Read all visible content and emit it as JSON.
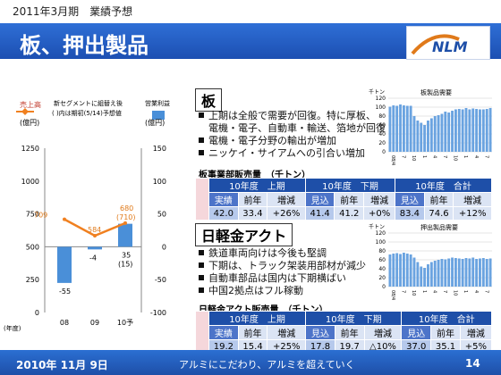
{
  "header": {
    "period": "2011年3月期　業績予想",
    "title": "板、押出製品"
  },
  "logo": {
    "text": "NLM"
  },
  "chart_main": {
    "left_title": "売上高",
    "left_unit": "(億円)",
    "legend_line": "新セグメントに組替え後",
    "legend_line2": "(   )内は期初(5/14)予想値",
    "right_title": "営業利益",
    "right_unit": "(億円)",
    "year_label": "(年度)",
    "left_ticks": [
      "1250",
      "1000",
      "750",
      "500",
      "250",
      "0"
    ],
    "right_ticks": [
      "150",
      "100",
      "50",
      "0",
      "-50",
      "-100"
    ],
    "categories": [
      "08",
      "09",
      "10予"
    ],
    "label_709": "709",
    "label_584": "584",
    "label_680": "680",
    "label_710": "(710)",
    "label_n55": "-55",
    "label_n4": "-4",
    "label_35": "35",
    "label_15": "(15)"
  },
  "chart_data": [
    {
      "type": "bar+line",
      "categories": [
        "08",
        "09",
        "10予"
      ],
      "series": [
        {
          "name": "売上高",
          "type": "line",
          "values": [
            709,
            584,
            680
          ]
        },
        {
          "name": "営業利益",
          "type": "bar",
          "values": [
            -55,
            -4,
            35
          ]
        }
      ],
      "ylim_left": [
        0,
        1250
      ],
      "ylim_right": [
        -100,
        150
      ]
    },
    {
      "type": "bar",
      "title": "板製品需要",
      "ylabel": "千トン",
      "yticks": [
        0,
        20,
        40,
        60,
        80,
        100,
        120
      ],
      "xlabels": [
        "08/4",
        "7",
        "10",
        "1",
        "4",
        "7",
        "10",
        "1",
        "4",
        "7"
      ],
      "values": [
        101,
        104,
        103,
        106,
        104,
        103,
        103,
        80,
        70,
        65,
        60,
        70,
        75,
        80,
        82,
        85,
        90,
        88,
        92,
        95,
        96,
        95,
        98,
        95,
        97,
        96,
        95,
        95,
        96,
        98
      ]
    },
    {
      "type": "bar",
      "title": "押出製品需要",
      "ylabel": "千トン",
      "yticks": [
        0,
        20,
        40,
        60,
        80,
        100,
        120
      ],
      "xlabels": [
        "08/4",
        "7",
        "10",
        "1",
        "4",
        "7",
        "10",
        "1",
        "4",
        "7"
      ],
      "values": [
        72,
        74,
        75,
        73,
        76,
        74,
        72,
        65,
        55,
        45,
        42,
        50,
        55,
        58,
        60,
        62,
        61,
        63,
        65,
        64,
        63,
        62,
        64,
        63,
        65,
        62,
        63,
        64,
        62,
        63
      ]
    }
  ],
  "sec1": {
    "name": "板",
    "bullets": [
      "上期は全般で需要が回復。特に厚板、",
      "電機・電子、自動車・輸送、箔地が回復",
      "電機・電子分野の輸出が増加",
      "ニッケイ・サイアムへの引合い増加"
    ],
    "subhead": "板事業部販売量　（千トン）",
    "h1": "10年度　上期",
    "h2": "10年度　下期",
    "h3": "10年度　合計",
    "sh": [
      "実績",
      "前年",
      "増減",
      "見込",
      "前年",
      "増減",
      "見込",
      "前年",
      "増減"
    ],
    "row": [
      "42.0",
      "33.4",
      "+26%",
      "41.4",
      "41.2",
      "+0%",
      "83.4",
      "74.6",
      "+12%"
    ]
  },
  "sec2": {
    "name": "日軽金アクト",
    "bullets": [
      "鉄道車両向けは今後も堅調",
      "下期は、トラック架装用部材が減少",
      "自動車部品は国内は下期横ばい",
      "中国2拠点はフル稼動"
    ],
    "subhead": "日軽金アクト販売量　（千トン）",
    "h1": "10年度　上期",
    "h2": "10年度　下期",
    "h3": "10年度　合計",
    "sh": [
      "実績",
      "前年",
      "増減",
      "見込",
      "前年",
      "増減",
      "見込",
      "前年",
      "増減"
    ],
    "row": [
      "19.2",
      "15.4",
      "+25%",
      "17.8",
      "19.7",
      "△10%",
      "37.0",
      "35.1",
      "+5%"
    ]
  },
  "mini1": {
    "title": "板製品需要",
    "unit": "千トン"
  },
  "mini2": {
    "title": "押出製品需要",
    "unit": "千トン"
  },
  "footer": {
    "date": "2010年 11月 9日",
    "slogan": "アルミにこだわり、アルミを超えていく",
    "page": "14"
  }
}
